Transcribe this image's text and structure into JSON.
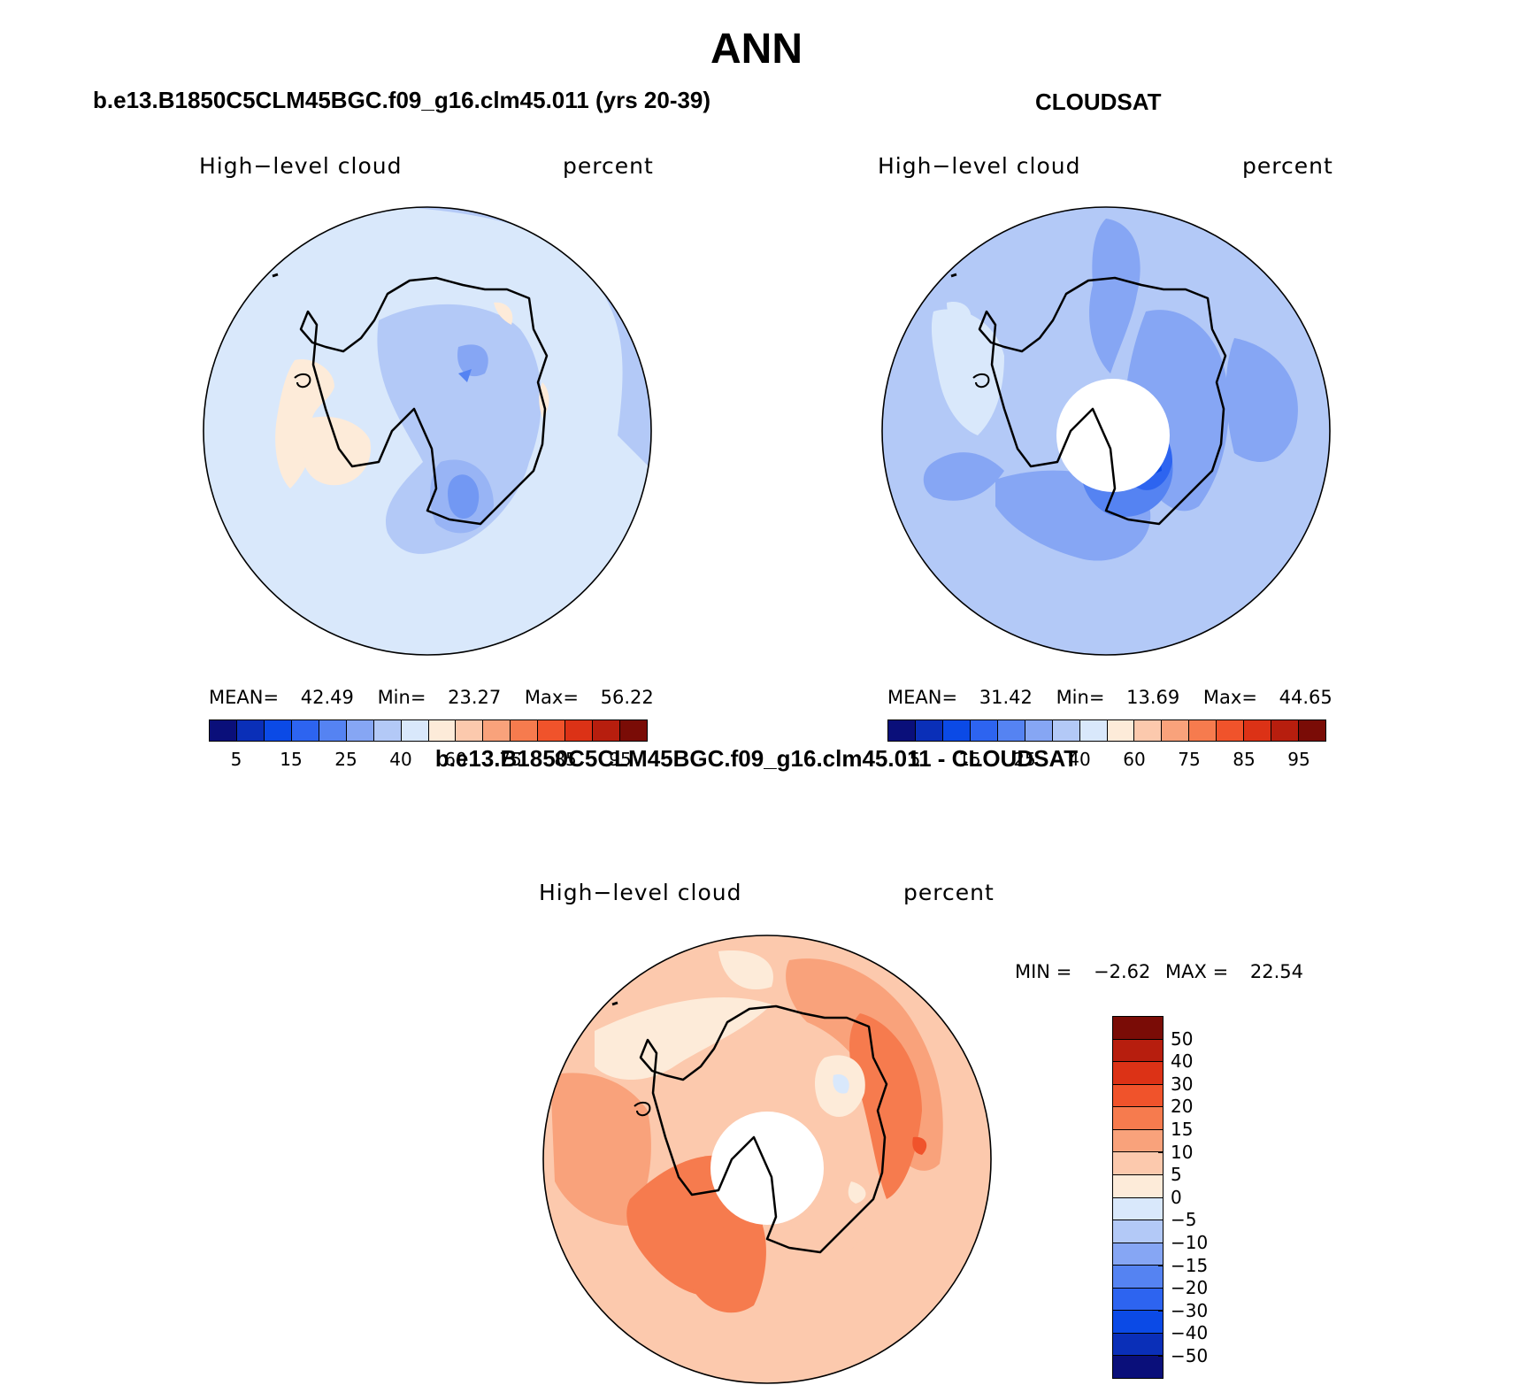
{
  "title": "ANN",
  "panels": {
    "model": {
      "title": "b.e13.B1850C5CLM45BGC.f09_g16.clm45.011 (yrs 20-39)",
      "variable": "High−level cloud",
      "units": "percent",
      "stats": {
        "mean_label": "MEAN=",
        "mean": "42.49",
        "min_label": "Min=",
        "min": "23.27",
        "max_label": "Max=",
        "max": "56.22"
      }
    },
    "obs": {
      "title": "CLOUDSAT",
      "variable": "High−level cloud",
      "units": "percent",
      "stats": {
        "mean_label": "MEAN=",
        "mean": "31.42",
        "min_label": "Min=",
        "min": "13.69",
        "max_label": "Max=",
        "max": "44.65"
      }
    },
    "diff": {
      "title": "b.e13.B1850C5CLM45BGC.f09_g16.clm45.011 - CLOUDSAT",
      "variable": "High−level cloud",
      "units": "percent",
      "stats": {
        "min_label": "MIN =",
        "min": "−2.62",
        "max_label": "MAX =",
        "max": "22.54"
      }
    }
  },
  "colorbar_abs": {
    "colors": [
      "#0a0f7a",
      "#0a2fb8",
      "#0b4ae6",
      "#2d64f0",
      "#5583f2",
      "#86a6f4",
      "#b3c9f7",
      "#d9e8fb",
      "#fdebd9",
      "#fcc9ad",
      "#f9a27b",
      "#f67b4e",
      "#f0532b",
      "#dc3216",
      "#b71e0e",
      "#7a0c06"
    ],
    "labels": [
      "5",
      "15",
      "25",
      "40",
      "60",
      "75",
      "85",
      "95"
    ]
  },
  "colorbar_diff": {
    "colors": [
      "#7a0c06",
      "#b71e0e",
      "#dc3216",
      "#f0532b",
      "#f67b4e",
      "#f9a27b",
      "#fcc9ad",
      "#fdebd9",
      "#d9e8fb",
      "#b3c9f7",
      "#86a6f4",
      "#5583f2",
      "#2d64f0",
      "#0b4ae6",
      "#0a2fb8",
      "#0a0f7a"
    ],
    "labels": [
      "50",
      "40",
      "30",
      "20",
      "15",
      "10",
      "5",
      "0",
      "−5",
      "−10",
      "−15",
      "−20",
      "−30",
      "−40",
      "−50"
    ]
  }
}
